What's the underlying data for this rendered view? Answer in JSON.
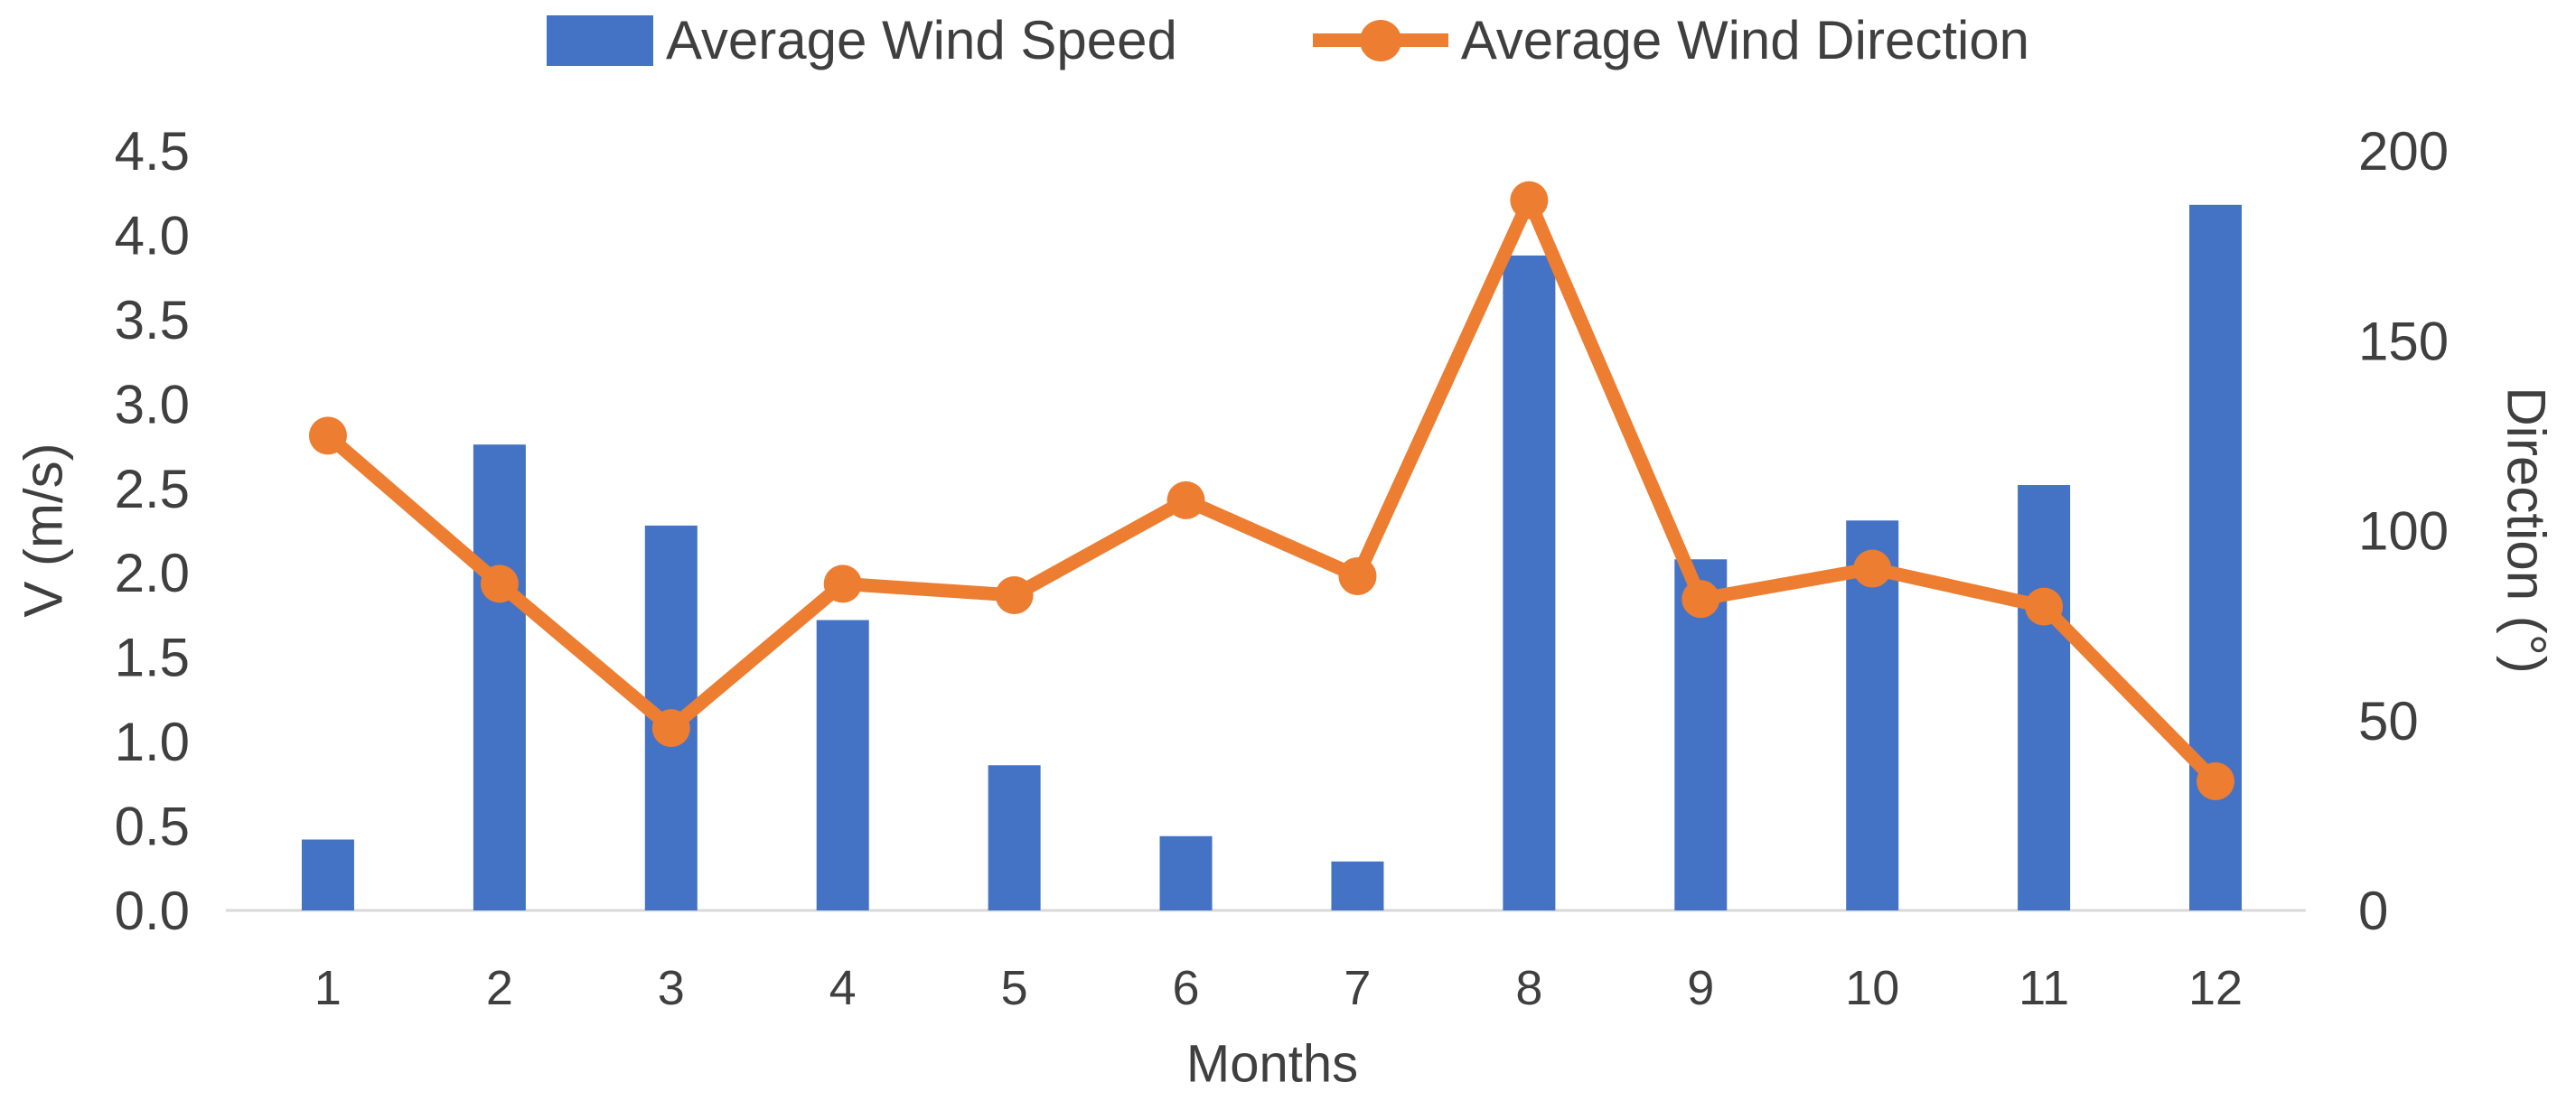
{
  "chart_data": {
    "type": "bar",
    "subtype": "combo-bar-line-dual-axis",
    "title": "",
    "categories": [
      "1",
      "2",
      "3",
      "4",
      "5",
      "6",
      "7",
      "8",
      "9",
      "10",
      "11",
      "12"
    ],
    "xlabel": "Months",
    "left_axis": {
      "label": "V (m/s)",
      "min": 0,
      "max": 4.5,
      "step": 0.5,
      "ticks": [
        "0.0",
        "0.5",
        "1.0",
        "1.5",
        "2.0",
        "2.5",
        "3.0",
        "3.5",
        "4.0",
        "4.5"
      ]
    },
    "right_axis": {
      "label": "Direction (°)",
      "min": 0,
      "max": 200,
      "step": 50,
      "ticks": [
        "0",
        "50",
        "100",
        "150",
        "200"
      ]
    },
    "legend_position": "top",
    "grid": false,
    "series": [
      {
        "name": "Average Wind Speed",
        "kind": "bar",
        "axis": "left",
        "color": "#4472C4",
        "values": [
          0.42,
          2.76,
          2.28,
          1.72,
          0.86,
          0.44,
          0.29,
          3.88,
          2.08,
          2.31,
          2.52,
          4.18
        ]
      },
      {
        "name": "Average Wind Direction",
        "kind": "line",
        "axis": "right",
        "color": "#ED7D31",
        "marker": "circle",
        "values": [
          125,
          86,
          48,
          86,
          83,
          108,
          88,
          187,
          82,
          90,
          80,
          34
        ]
      }
    ],
    "style": {
      "text_color": "#3F3F3F",
      "baseline_color": "#D9D9D9",
      "background": "#FFFFFF"
    }
  }
}
